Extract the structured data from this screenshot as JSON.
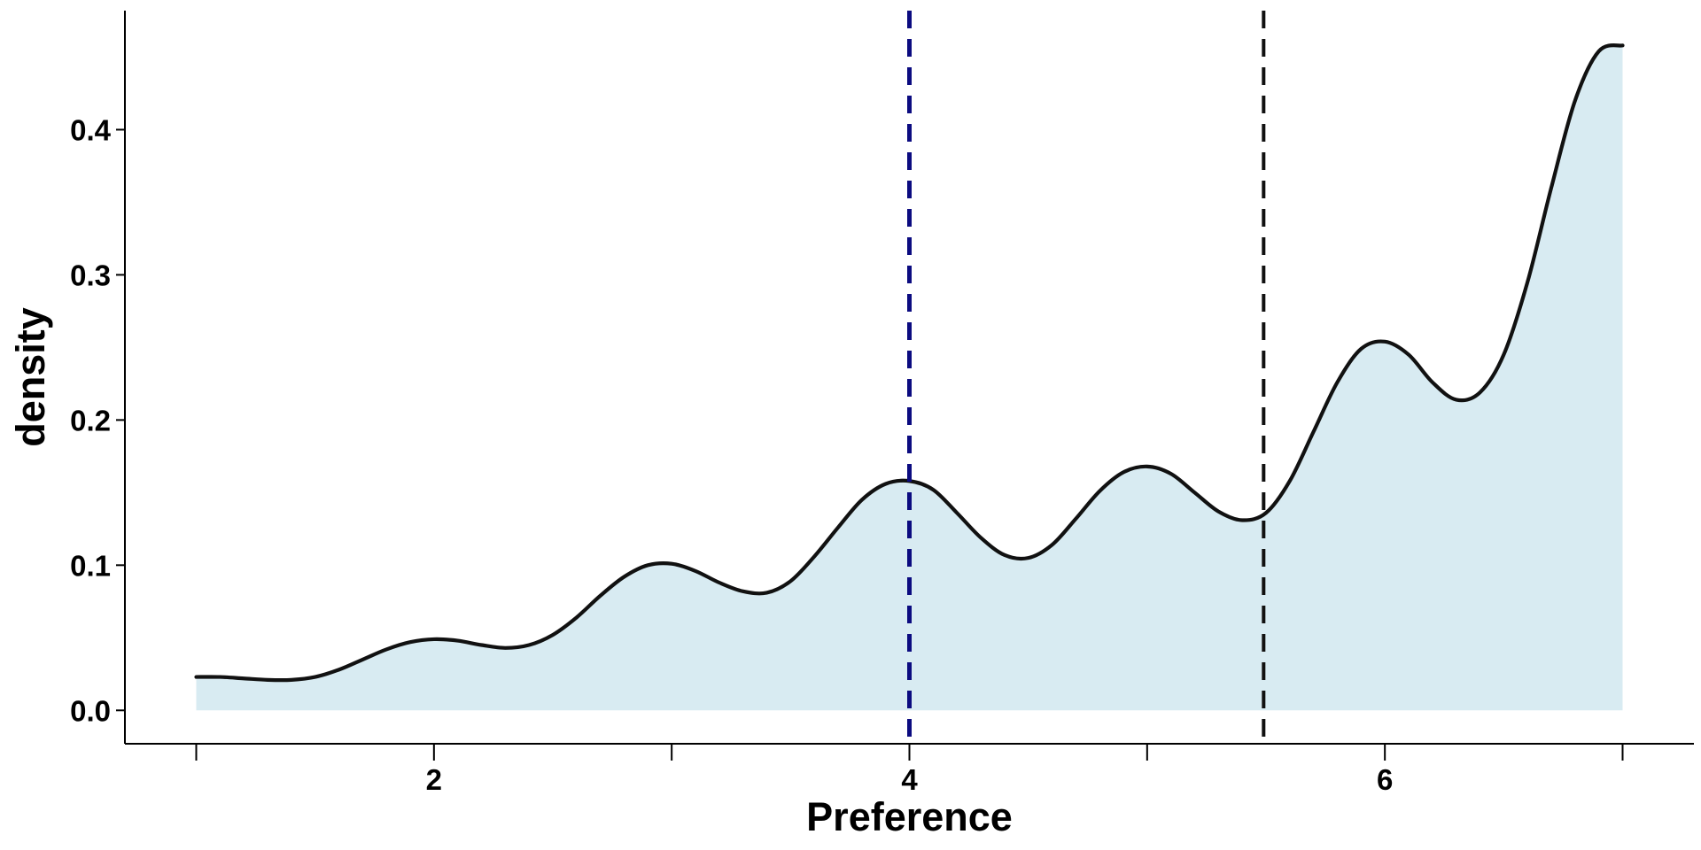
{
  "chart_data": {
    "type": "area",
    "xlabel": "Preference",
    "ylabel": "density",
    "xlim": [
      0.7,
      7.3
    ],
    "ylim": [
      -0.023,
      0.482
    ],
    "x_ticks": [
      1,
      2,
      3,
      4,
      5,
      6,
      7
    ],
    "x_tick_labels": [
      {
        "value": 2,
        "label": "2"
      },
      {
        "value": 4,
        "label": "4"
      },
      {
        "value": 6,
        "label": "6"
      }
    ],
    "y_ticks": [
      {
        "value": 0.0,
        "label": "0.0"
      },
      {
        "value": 0.1,
        "label": "0.1"
      },
      {
        "value": 0.2,
        "label": "0.2"
      },
      {
        "value": 0.3,
        "label": "0.3"
      },
      {
        "value": 0.4,
        "label": "0.4"
      }
    ],
    "grid": false,
    "legend": "none",
    "fill_color": "#d8ebf2",
    "line_color": "#111111",
    "series": [
      {
        "x": [
          1.0,
          1.1,
          1.2,
          1.3,
          1.4,
          1.5,
          1.6,
          1.7,
          1.8,
          1.9,
          2.0,
          2.1,
          2.2,
          2.3,
          2.4,
          2.5,
          2.6,
          2.7,
          2.8,
          2.9,
          3.0,
          3.1,
          3.2,
          3.3,
          3.4,
          3.5,
          3.6,
          3.7,
          3.8,
          3.9,
          4.0,
          4.1,
          4.2,
          4.3,
          4.4,
          4.5,
          4.6,
          4.7,
          4.8,
          4.9,
          5.0,
          5.1,
          5.2,
          5.3,
          5.4,
          5.5,
          5.6,
          5.7,
          5.8,
          5.9,
          6.0,
          6.1,
          6.2,
          6.3,
          6.4,
          6.5,
          6.6,
          6.7,
          6.8,
          6.9,
          7.0
        ],
        "y": [
          0.023,
          0.023,
          0.022,
          0.021,
          0.021,
          0.023,
          0.028,
          0.035,
          0.042,
          0.047,
          0.049,
          0.048,
          0.045,
          0.043,
          0.045,
          0.052,
          0.064,
          0.079,
          0.092,
          0.1,
          0.101,
          0.096,
          0.088,
          0.082,
          0.081,
          0.089,
          0.106,
          0.126,
          0.145,
          0.156,
          0.158,
          0.152,
          0.136,
          0.119,
          0.107,
          0.105,
          0.114,
          0.132,
          0.151,
          0.164,
          0.168,
          0.163,
          0.15,
          0.137,
          0.131,
          0.136,
          0.158,
          0.192,
          0.226,
          0.249,
          0.254,
          0.245,
          0.226,
          0.214,
          0.219,
          0.245,
          0.295,
          0.36,
          0.42,
          0.454,
          0.458
        ]
      }
    ],
    "vlines": [
      {
        "x": 4.0,
        "color": "#0b0b80",
        "style": "dashed"
      },
      {
        "x": 5.49,
        "color": "#111111",
        "style": "dashed"
      }
    ]
  }
}
